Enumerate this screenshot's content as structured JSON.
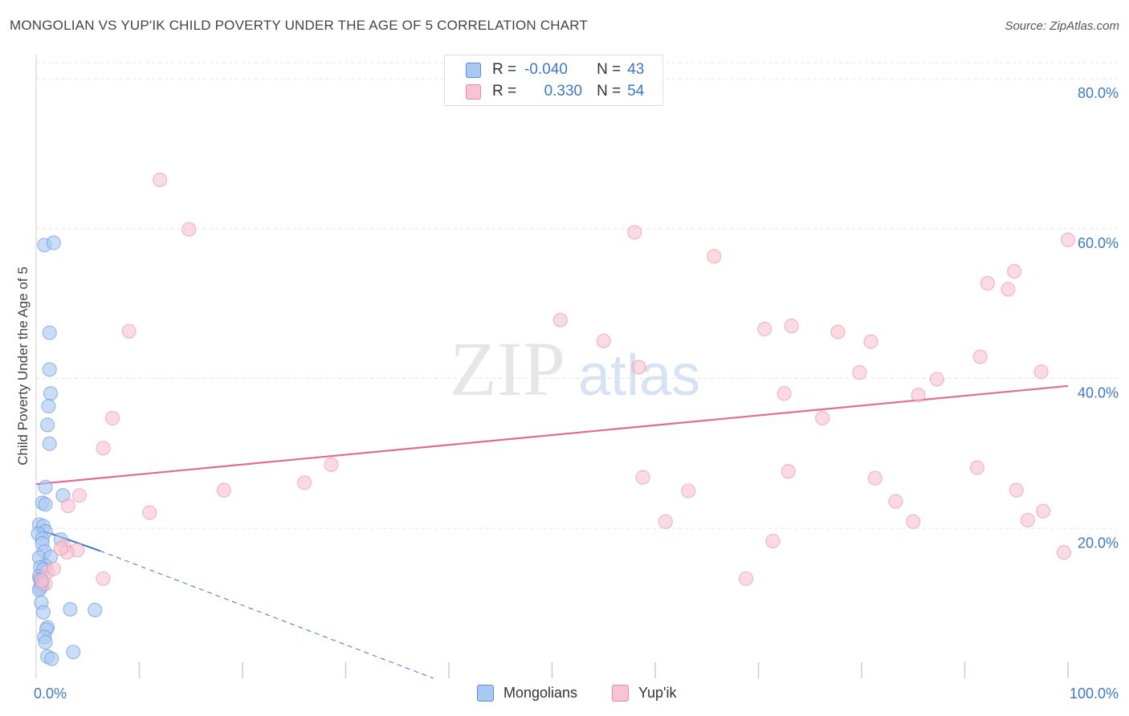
{
  "title": "MONGOLIAN VS YUP'IK CHILD POVERTY UNDER THE AGE OF 5 CORRELATION CHART",
  "source": "Source: ZipAtlas.com",
  "watermark": {
    "zip": "ZIP",
    "atlas": "atlas"
  },
  "legend": {
    "rows": [
      {
        "r_label": "R =",
        "r_value": "-0.040",
        "n_label": "N =",
        "n_value": "43",
        "color": "#a9c8f2",
        "border": "#5a8fd8"
      },
      {
        "r_label": "R =",
        "r_value": "0.330",
        "n_label": "N =",
        "n_value": "54",
        "color": "#f8c4d3",
        "border": "#e58aa7"
      }
    ]
  },
  "bottom_legend": [
    {
      "label": "Mongolians",
      "color": "#a9c8f2",
      "border": "#5a8fd8"
    },
    {
      "label": "Yup'ik",
      "color": "#f8c4d3",
      "border": "#e58aa7"
    }
  ],
  "chart_data": {
    "type": "scatter",
    "title": "MONGOLIAN VS YUP'IK CHILD POVERTY UNDER THE AGE OF 5 CORRELATION CHART",
    "xlabel": "",
    "ylabel": "Child Poverty Under the Age of 5",
    "xlim": [
      0,
      100
    ],
    "ylim": [
      0,
      80
    ],
    "x_tick_labels": [
      "0.0%",
      "100.0%"
    ],
    "y_ticks": [
      20,
      40,
      60,
      80
    ],
    "y_tick_labels": [
      "20.0%",
      "40.0%",
      "60.0%",
      "80.0%"
    ],
    "grid": true,
    "series": [
      {
        "name": "Mongolians",
        "color": "#5a8fd8",
        "fill": "#a9c8f2",
        "points": [
          [
            0.8,
            57.8
          ],
          [
            1.7,
            58.1
          ],
          [
            1.3,
            46.1
          ],
          [
            1.3,
            41.2
          ],
          [
            1.4,
            38.0
          ],
          [
            1.2,
            36.3
          ],
          [
            1.1,
            33.8
          ],
          [
            1.3,
            31.3
          ],
          [
            0.9,
            25.5
          ],
          [
            2.6,
            24.4
          ],
          [
            0.6,
            23.4
          ],
          [
            0.9,
            23.2
          ],
          [
            0.3,
            20.5
          ],
          [
            0.7,
            20.3
          ],
          [
            0.9,
            19.6
          ],
          [
            0.2,
            19.3
          ],
          [
            0.6,
            18.6
          ],
          [
            2.4,
            18.5
          ],
          [
            0.6,
            18.0
          ],
          [
            0.8,
            16.9
          ],
          [
            0.3,
            16.1
          ],
          [
            1.4,
            16.2
          ],
          [
            0.9,
            15.0
          ],
          [
            0.4,
            14.8
          ],
          [
            0.7,
            14.5
          ],
          [
            0.3,
            13.6
          ],
          [
            0.4,
            13.2
          ],
          [
            0.6,
            12.9
          ],
          [
            0.5,
            12.6
          ],
          [
            0.6,
            12.4
          ],
          [
            0.4,
            12.1
          ],
          [
            0.3,
            11.8
          ],
          [
            0.5,
            10.1
          ],
          [
            0.7,
            8.8
          ],
          [
            3.3,
            9.2
          ],
          [
            5.7,
            9.1
          ],
          [
            1.1,
            6.8
          ],
          [
            1.0,
            6.5
          ],
          [
            0.8,
            5.5
          ],
          [
            0.9,
            4.8
          ],
          [
            3.6,
            3.5
          ],
          [
            1.1,
            2.9
          ],
          [
            1.5,
            2.6
          ]
        ],
        "trend": {
          "x": [
            0,
            6.2
          ],
          "y": [
            20.0,
            17.0
          ],
          "dashed_extension_to": [
            38.5,
            0
          ]
        }
      },
      {
        "name": "Yup'ik",
        "color": "#e58aa7",
        "fill": "#f8c4d3",
        "points": [
          [
            12.0,
            66.5
          ],
          [
            14.8,
            59.9
          ],
          [
            9.0,
            46.3
          ],
          [
            7.4,
            34.7
          ],
          [
            6.5,
            30.7
          ],
          [
            4.2,
            24.4
          ],
          [
            4.0,
            17.1
          ],
          [
            2.7,
            17.6
          ],
          [
            1.1,
            14.2
          ],
          [
            0.9,
            12.6
          ],
          [
            6.5,
            13.3
          ],
          [
            3.1,
            23.0
          ],
          [
            11.0,
            22.1
          ],
          [
            18.2,
            25.1
          ],
          [
            26.0,
            26.1
          ],
          [
            28.6,
            28.5
          ],
          [
            50.8,
            47.8
          ],
          [
            55.0,
            45.0
          ],
          [
            58.4,
            41.5
          ],
          [
            58.8,
            26.8
          ],
          [
            61.0,
            20.9
          ],
          [
            63.2,
            25.0
          ],
          [
            58.0,
            59.5
          ],
          [
            65.7,
            56.3
          ],
          [
            70.6,
            46.6
          ],
          [
            73.2,
            47.0
          ],
          [
            72.5,
            38.0
          ],
          [
            72.9,
            27.6
          ],
          [
            71.4,
            18.3
          ],
          [
            68.8,
            13.3
          ],
          [
            76.2,
            34.7
          ],
          [
            77.7,
            46.2
          ],
          [
            79.8,
            40.8
          ],
          [
            80.9,
            44.9
          ],
          [
            81.3,
            26.7
          ],
          [
            83.3,
            23.6
          ],
          [
            85.0,
            20.9
          ],
          [
            85.5,
            37.8
          ],
          [
            87.3,
            39.9
          ],
          [
            92.2,
            52.7
          ],
          [
            91.5,
            42.9
          ],
          [
            91.2,
            28.1
          ],
          [
            94.2,
            51.9
          ],
          [
            94.8,
            54.3
          ],
          [
            95.0,
            25.1
          ],
          [
            96.1,
            21.1
          ],
          [
            97.4,
            40.9
          ],
          [
            97.6,
            22.3
          ],
          [
            99.6,
            16.8
          ],
          [
            100.0,
            58.5
          ],
          [
            3.0,
            16.8
          ],
          [
            2.4,
            17.3
          ],
          [
            1.7,
            14.6
          ],
          [
            0.5,
            13.0
          ]
        ],
        "trend": {
          "x": [
            0,
            100
          ],
          "y": [
            25.9,
            39.0
          ]
        }
      }
    ]
  }
}
